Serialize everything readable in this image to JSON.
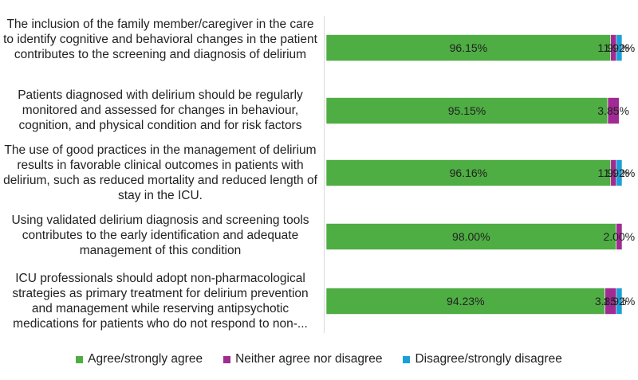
{
  "chart_data": {
    "type": "bar",
    "orientation": "horizontal",
    "stacked": true,
    "title": "",
    "xlabel": "",
    "ylabel": "",
    "xlim": [
      0,
      100
    ],
    "grid": false,
    "legend_position": "bottom",
    "categories": [
      "The inclusion of the family member/caregiver in the care to identify cognitive and behavioral changes in the patient contributes to the screening and diagnosis of delirium",
      "Patients diagnosed with delirium should be regularly monitored and assessed for changes in behaviour, cognition, and physical condition and for risk factors",
      "The use of good practices in the management of delirium results in favorable clinical outcomes in patients with delirium, such as reduced mortality and reduced length of stay in the ICU.",
      "Using validated delirium diagnosis and screening tools contributes to the early identification and adequate management of this condition",
      "ICU professionals should adopt non-pharmacological strategies as primary treatment for delirium prevention and management while reserving antipsychotic medications for patients who do not respond to non-..."
    ],
    "series": [
      {
        "name": "Agree/strongly agree",
        "color": "#4ead43",
        "values": [
          96.15,
          95.15,
          96.16,
          98.0,
          94.23
        ],
        "labels": [
          "96.15%",
          "95.15%",
          "96.16%",
          "98.00%",
          "94.23%"
        ]
      },
      {
        "name": "Neither agree nor disagree",
        "color": "#a02b93",
        "values": [
          1.92,
          3.85,
          1.92,
          2.0,
          3.85
        ],
        "labels": [
          "1.92%",
          "3.85%",
          "1.92%",
          "2.00%",
          "3.85%"
        ]
      },
      {
        "name": "Disagree/strongly disagree",
        "color": "#1aa0d8",
        "values": [
          1.92,
          0,
          1.92,
          0,
          1.92
        ],
        "labels": [
          "1.92%",
          "",
          "1.92%",
          "",
          "1.92%"
        ]
      }
    ]
  }
}
